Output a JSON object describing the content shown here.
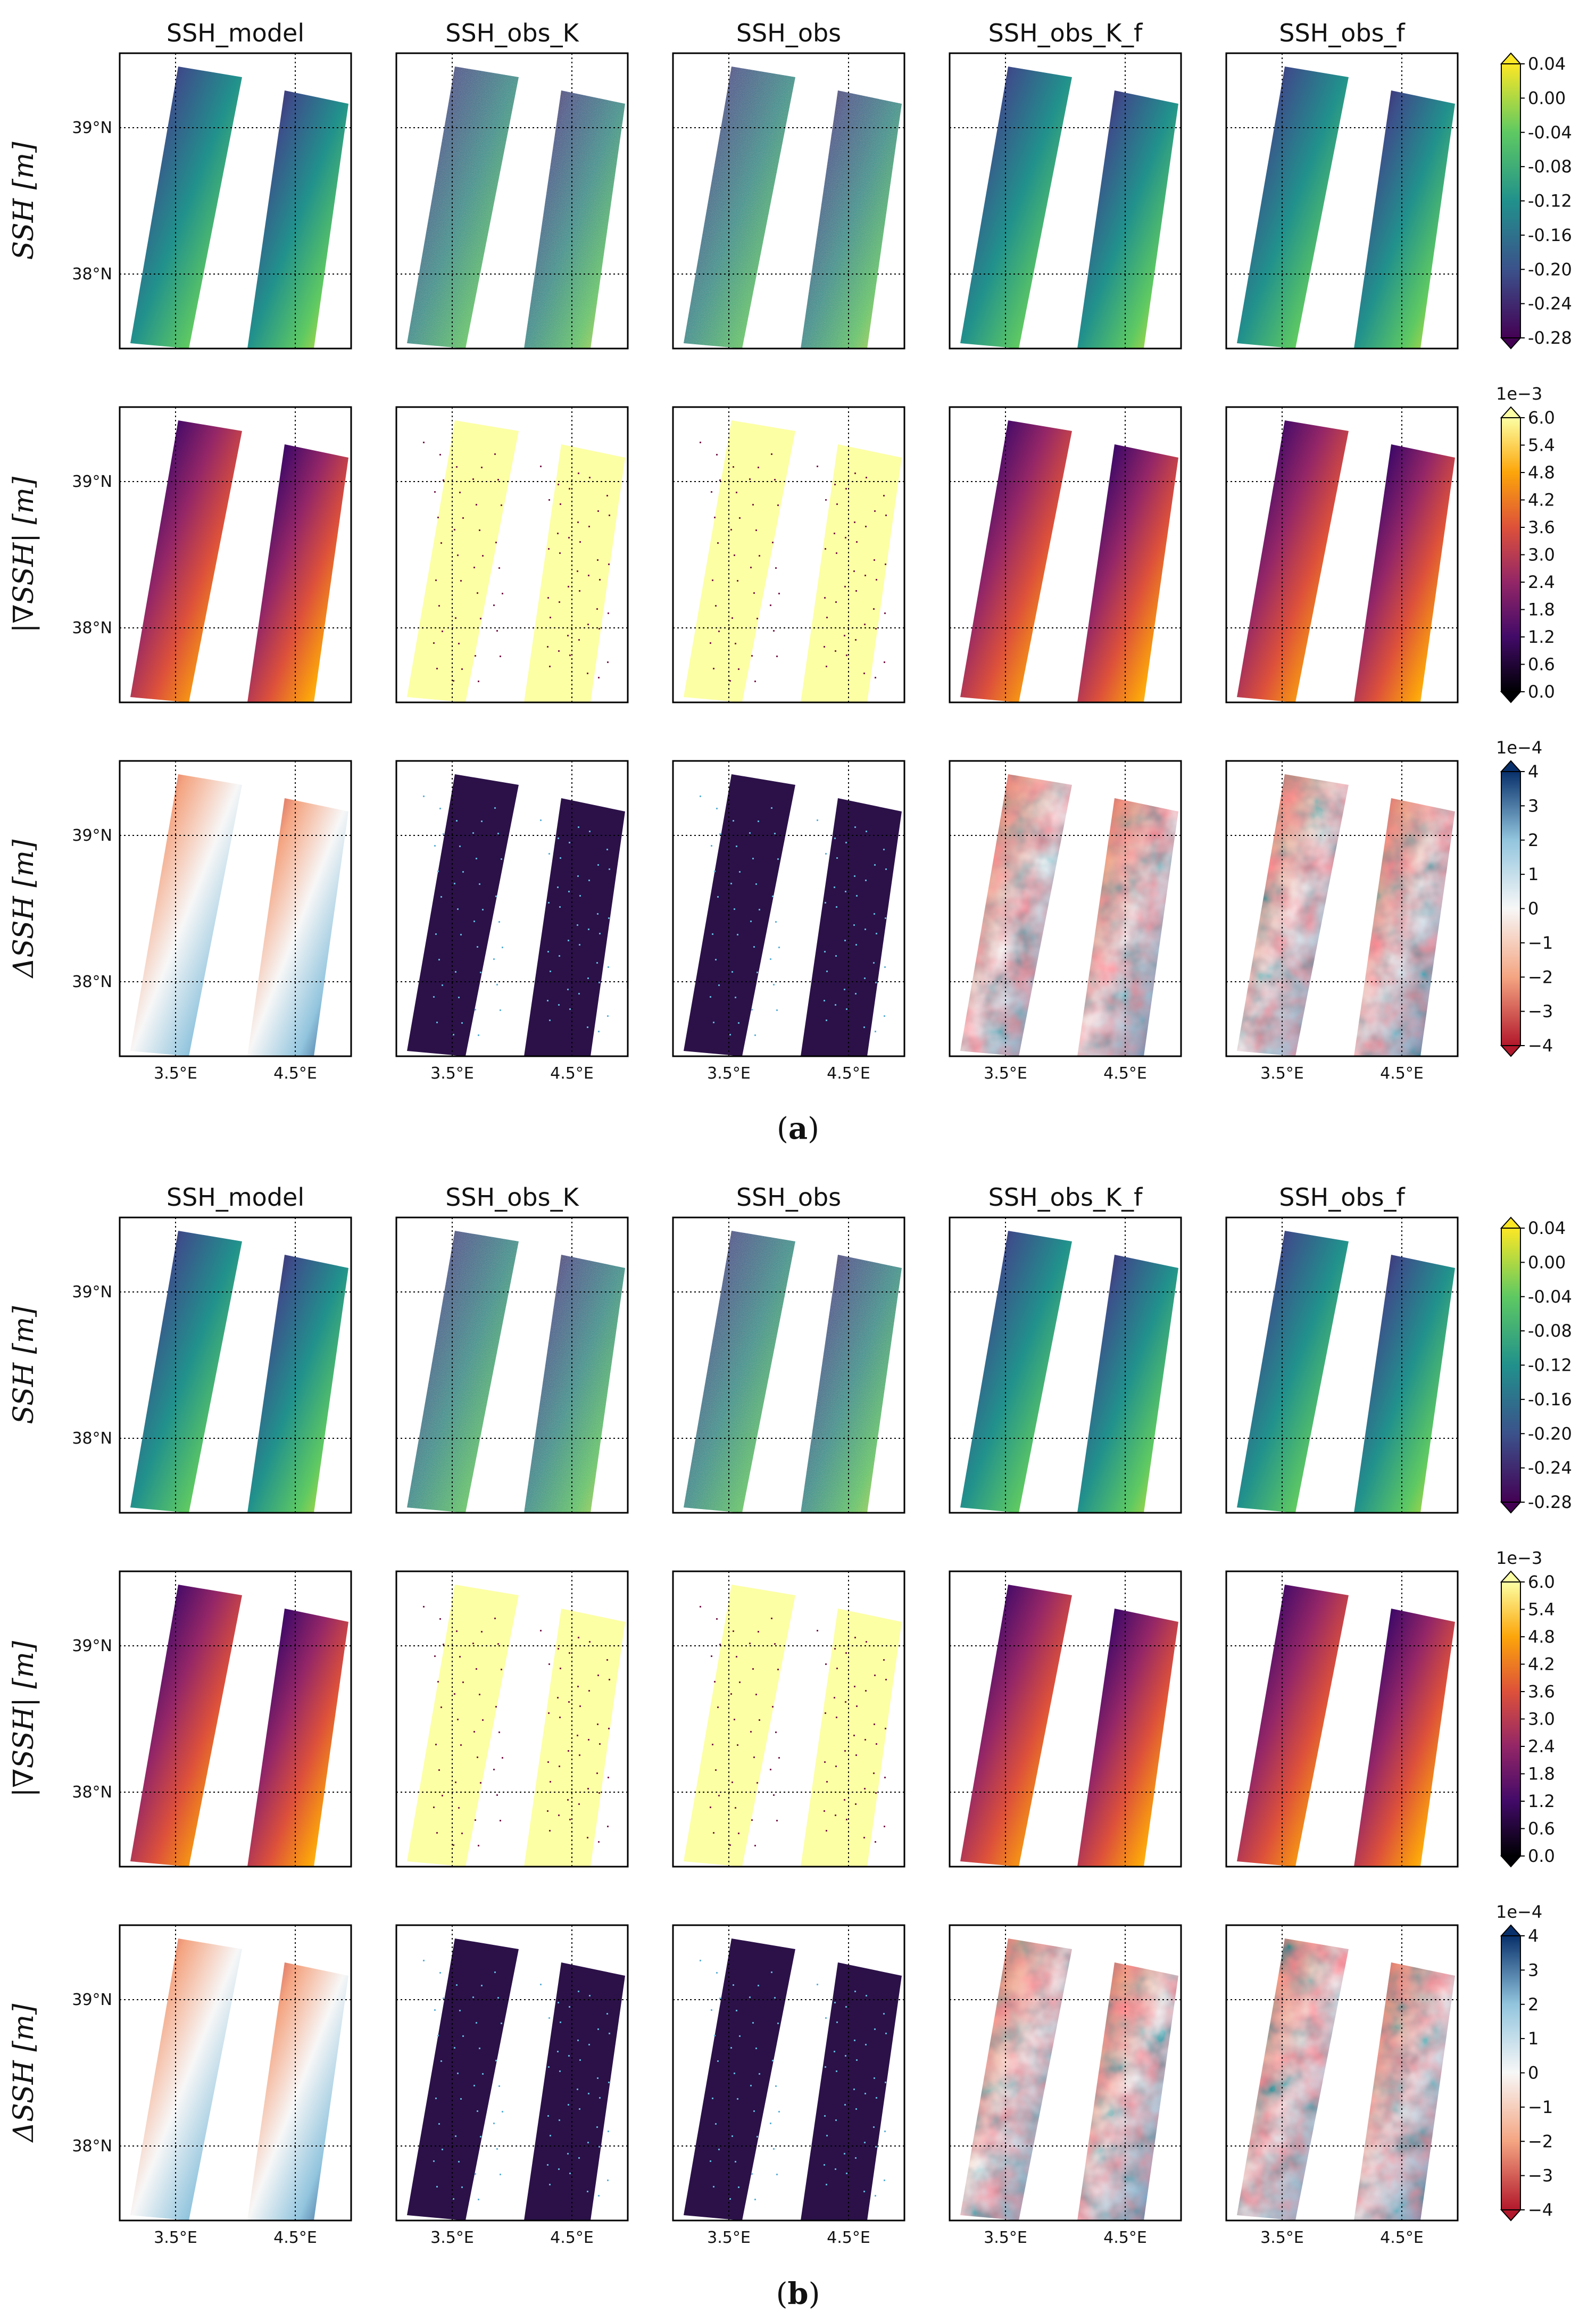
{
  "panels": [
    {
      "label": "(a)",
      "label_parts": {
        "open": "(",
        "letter": "a",
        "close": ")"
      },
      "columns": [
        "SSH_model",
        "SSH_obs_K",
        "SSH_obs",
        "SSH_obs_K_f",
        "SSH_obs_f"
      ],
      "rows": [
        {
          "label": "SSH [m]",
          "colormap": "viridis",
          "patterns": [
            "smooth",
            "noisy",
            "noisy",
            "smooth",
            "smooth"
          ],
          "colorbar": {
            "exponent": "",
            "ticks": [
              "0.04",
              "0.00",
              "-0.04",
              "-0.08",
              "-0.12",
              "-0.16",
              "-0.20",
              "-0.24",
              "-0.28"
            ]
          }
        },
        {
          "label": "|∇SSH| [m]",
          "colormap": "inferno",
          "patterns": [
            "smooth",
            "flat",
            "flat",
            "smooth",
            "smooth"
          ],
          "colorbar": {
            "exponent": "1e−3",
            "ticks": [
              "6.0",
              "5.4",
              "4.8",
              "4.2",
              "3.6",
              "3.0",
              "2.4",
              "1.8",
              "1.2",
              "0.6",
              "0.0"
            ]
          }
        },
        {
          "label": "ΔSSH [m]",
          "colormap": "rdbu",
          "patterns": [
            "smooth",
            "dark",
            "dark",
            "mottled",
            "mottled"
          ],
          "colorbar": {
            "exponent": "1e−4",
            "ticks": [
              "4",
              "3",
              "2",
              "1",
              "0",
              "−1",
              "−2",
              "−3",
              "−4"
            ]
          }
        }
      ]
    },
    {
      "label": "(b)",
      "label_parts": {
        "open": "(",
        "letter": "b",
        "close": ")"
      },
      "columns": [
        "SSH_model",
        "SSH_obs_K",
        "SSH_obs",
        "SSH_obs_K_f",
        "SSH_obs_f"
      ],
      "rows": [
        {
          "label": "SSH [m]",
          "colormap": "viridis",
          "patterns": [
            "smooth",
            "noisy",
            "noisy",
            "smooth",
            "smooth"
          ],
          "colorbar": {
            "exponent": "",
            "ticks": [
              "0.04",
              "0.00",
              "-0.04",
              "-0.08",
              "-0.12",
              "-0.16",
              "-0.20",
              "-0.24",
              "-0.28"
            ]
          }
        },
        {
          "label": "|∇SSH| [m]",
          "colormap": "inferno",
          "patterns": [
            "smooth",
            "flat",
            "flat",
            "smooth",
            "smooth"
          ],
          "colorbar": {
            "exponent": "1e−3",
            "ticks": [
              "6.0",
              "5.4",
              "4.8",
              "4.2",
              "3.6",
              "3.0",
              "2.4",
              "1.8",
              "1.2",
              "0.6",
              "0.0"
            ]
          }
        },
        {
          "label": "ΔSSH [m]",
          "colormap": "rdbu",
          "patterns": [
            "smooth",
            "dark",
            "dark",
            "mottled",
            "mottled"
          ],
          "colorbar": {
            "exponent": "1e−4",
            "ticks": [
              "4",
              "3",
              "2",
              "1",
              "0",
              "−1",
              "−2",
              "−3",
              "−4"
            ]
          }
        }
      ]
    }
  ],
  "lat_ticks": [
    "39°N",
    "38°N"
  ],
  "lon_ticks": [
    "3.5°E",
    "4.5°E"
  ],
  "colors": {
    "viridis": [
      "#440154",
      "#3b528b",
      "#21918c",
      "#5ec962",
      "#fde725"
    ],
    "inferno": [
      "#000004",
      "#420a68",
      "#932667",
      "#dd513a",
      "#fca50a",
      "#fcffa4"
    ],
    "rdbu": [
      "#b2182b",
      "#f4a582",
      "#f7f7f7",
      "#92c5de",
      "#08306b"
    ]
  }
}
